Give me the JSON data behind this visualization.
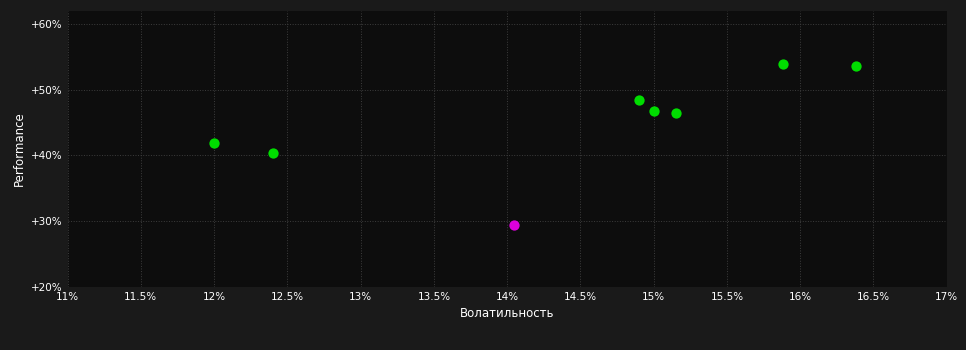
{
  "background_color": "#1a1a1a",
  "plot_bg_color": "#0d0d0d",
  "text_color": "#ffffff",
  "xlabel": "Волатильность",
  "ylabel": "Performance",
  "xlim": [
    0.11,
    0.17
  ],
  "ylim": [
    0.2,
    0.62
  ],
  "xticks": [
    0.11,
    0.115,
    0.12,
    0.125,
    0.13,
    0.135,
    0.14,
    0.145,
    0.15,
    0.155,
    0.16,
    0.165,
    0.17
  ],
  "yticks": [
    0.2,
    0.3,
    0.4,
    0.5,
    0.6
  ],
  "ytick_labels": [
    "+20%",
    "+30%",
    "+40%",
    "+50%",
    "+60%"
  ],
  "xtick_labels": [
    "11%",
    "11.5%",
    "12%",
    "12.5%",
    "13%",
    "13.5%",
    "14%",
    "14.5%",
    "15%",
    "15.5%",
    "16%",
    "16.5%",
    "17%"
  ],
  "points_green": [
    [
      0.12,
      0.418
    ],
    [
      0.124,
      0.403
    ],
    [
      0.149,
      0.484
    ],
    [
      0.15,
      0.468
    ],
    [
      0.1515,
      0.464
    ],
    [
      0.1588,
      0.538
    ],
    [
      0.1638,
      0.536
    ]
  ],
  "points_magenta": [
    [
      0.1405,
      0.294
    ]
  ],
  "marker_size": 55
}
